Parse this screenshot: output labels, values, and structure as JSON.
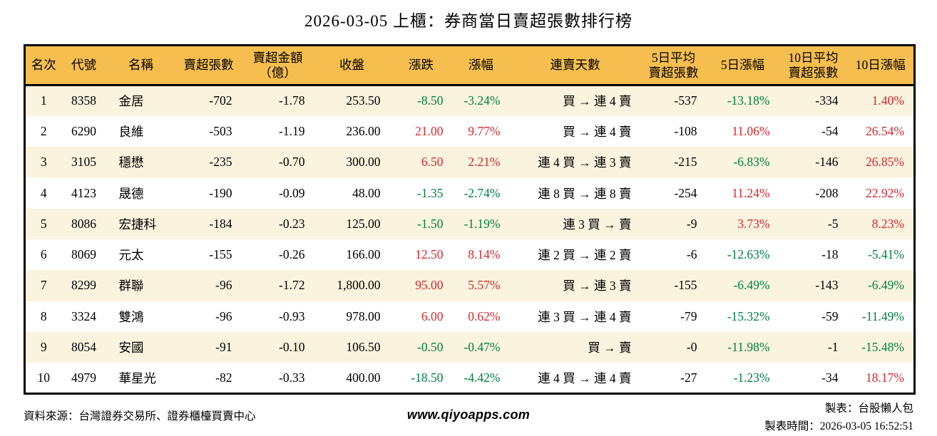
{
  "title": "2026-03-05 上櫃：券商當日賣超張數排行榜",
  "chart_data": {
    "type": "table",
    "title": "2026-03-05 上櫃：券商當日賣超張數排行榜",
    "columns": [
      "名次",
      "代號",
      "名稱",
      "賣超張數",
      "賣超金額\n（億）",
      "收盤",
      "漲跌",
      "漲幅",
      "連賣天數",
      "5日平均\n賣超張數",
      "5日漲幅",
      "10日平均\n賣超張數",
      "10日漲幅"
    ],
    "colored_columns": [
      6,
      7,
      10,
      12
    ],
    "rows": [
      [
        "1",
        "8358",
        "金居",
        "-702",
        "-1.78",
        "253.50",
        "-8.50",
        "-3.24%",
        "買 → 連 4 賣",
        "-537",
        "-13.18%",
        "-334",
        "1.40%"
      ],
      [
        "2",
        "6290",
        "良維",
        "-503",
        "-1.19",
        "236.00",
        "21.00",
        "9.77%",
        "買 → 連 4 賣",
        "-108",
        "11.06%",
        "-54",
        "26.54%"
      ],
      [
        "3",
        "3105",
        "穩懋",
        "-235",
        "-0.70",
        "300.00",
        "6.50",
        "2.21%",
        "連 4 買 → 連 3 賣",
        "-215",
        "-6.83%",
        "-146",
        "26.85%"
      ],
      [
        "4",
        "4123",
        "晟德",
        "-190",
        "-0.09",
        "48.00",
        "-1.35",
        "-2.74%",
        "連 8 買 → 連 8 賣",
        "-254",
        "11.24%",
        "-208",
        "22.92%"
      ],
      [
        "5",
        "8086",
        "宏捷科",
        "-184",
        "-0.23",
        "125.00",
        "-1.50",
        "-1.19%",
        "連 3 買 → 賣",
        "-9",
        "3.73%",
        "-5",
        "8.23%"
      ],
      [
        "6",
        "8069",
        "元太",
        "-155",
        "-0.26",
        "166.00",
        "12.50",
        "8.14%",
        "連 2 買 → 連 2 賣",
        "-6",
        "-12.63%",
        "-18",
        "-5.41%"
      ],
      [
        "7",
        "8299",
        "群聯",
        "-96",
        "-1.72",
        "1,800.00",
        "95.00",
        "5.57%",
        "買 → 連 3 賣",
        "-155",
        "-6.49%",
        "-143",
        "-6.49%"
      ],
      [
        "8",
        "3324",
        "雙鴻",
        "-96",
        "-0.93",
        "978.00",
        "6.00",
        "0.62%",
        "連 3 買 → 連 4 賣",
        "-79",
        "-15.32%",
        "-59",
        "-11.49%"
      ],
      [
        "9",
        "8054",
        "安國",
        "-91",
        "-0.10",
        "106.50",
        "-0.50",
        "-0.47%",
        "買 → 賣",
        "-0",
        "-11.98%",
        "-1",
        "-15.48%"
      ],
      [
        "10",
        "4979",
        "華星光",
        "-82",
        "-0.33",
        "400.00",
        "-18.50",
        "-4.42%",
        "連 4 買 → 連 4 賣",
        "-27",
        "-1.23%",
        "-34",
        "18.17%"
      ]
    ]
  },
  "footer": {
    "source": "資料來源：台灣證券交易所、證券櫃檯買賣中心",
    "website": "www.qiyoapps.com",
    "maker": "製表：台股懶人包",
    "generated_at": "製表時間：2026-03-05 16:52:51"
  },
  "colors": {
    "header_bg": "#f6be4e",
    "row_alt_bg": "#faf3de",
    "row_bg": "#ffffff",
    "border": "#000000",
    "positive_red": "#d7282d",
    "negative_green": "#008040",
    "text": "#000000"
  }
}
